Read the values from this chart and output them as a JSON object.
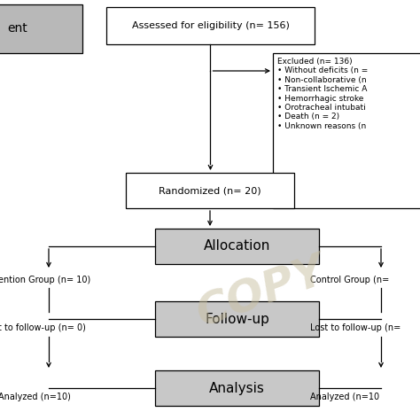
{
  "bg_color": "#ffffff",
  "watermark": "COPY",
  "eligibility_text": "Assessed for eligibility (n= 156)",
  "excluded_text": "Excluded (n= 136)\n• Without deficits (n =\n• Non-collaborative (n\n• Transient Ischemic A\n• Hemorrhagic stroke\n• Orotracheal intubati\n• Death (n = 2)\n• Unknown reasons (n",
  "randomized_text": "Randomized (n= 20)",
  "allocation_text": "Allocation",
  "followup_text": "Follow-up",
  "analysis_text": "Analysis",
  "intervention_text": "ention Group (n= 10)",
  "control_text": "Control Group (n=",
  "lost_left_text": "t to follow-up (n= 0)",
  "lost_right_text": "Lost to follow-up (n=",
  "analyzed_left_text": "Analyzed (n=10)",
  "analyzed_right_text": "Analyzed (n=10",
  "topleft_text": "ent",
  "gray_fill": "#c8c8c8",
  "white_fill": "#ffffff",
  "topleft_fill": "#b8b8b8"
}
